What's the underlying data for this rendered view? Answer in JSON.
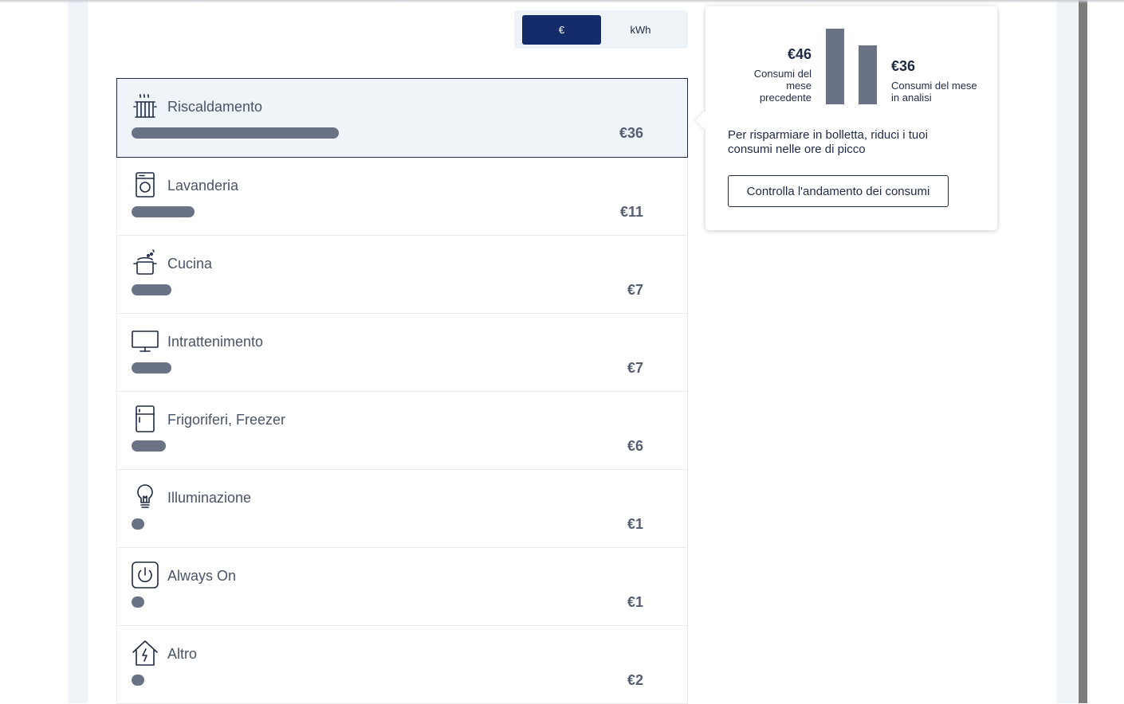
{
  "toggle": {
    "euro_label": "€",
    "kwh_label": "kWh",
    "selected": "€"
  },
  "categories": [
    {
      "icon": "radiator-icon",
      "label": "Riscaldamento",
      "value": "€36",
      "bar_fraction": 1.0,
      "selected": true
    },
    {
      "icon": "washing-machine-icon",
      "label": "Lavanderia",
      "value": "€11",
      "bar_fraction": 0.305
    },
    {
      "icon": "cooking-pot-icon",
      "label": "Cucina",
      "value": "€7",
      "bar_fraction": 0.194
    },
    {
      "icon": "monitor-icon",
      "label": "Intrattenimento",
      "value": "€7",
      "bar_fraction": 0.194
    },
    {
      "icon": "fridge-icon",
      "label": "Frigoriferi, Freezer",
      "value": "€6",
      "bar_fraction": 0.167
    },
    {
      "icon": "lightbulb-icon",
      "label": "Illuminazione",
      "value": "€1",
      "bar_fraction": 0.06
    },
    {
      "icon": "power-icon",
      "label": "Always On",
      "value": "€1",
      "bar_fraction": 0.06
    },
    {
      "icon": "house-bolt-icon",
      "label": "Altro",
      "value": "€2",
      "bar_fraction": 0.06
    }
  ],
  "popover": {
    "previous": {
      "value": "€46",
      "label": "Consumi del mese precedente",
      "amount": 46
    },
    "current": {
      "value": "€36",
      "label": "Consumi del mese in analisi",
      "amount": 36
    },
    "tip": "Per risparmiare in bolletta, riduci i tuoi consumi nelle ore di picco",
    "button_label": "Controlla l'andamento dei consumi"
  },
  "colors": {
    "accent": "#152c6b",
    "bar": "#6a7385",
    "selected_bg": "#eef4f8"
  }
}
